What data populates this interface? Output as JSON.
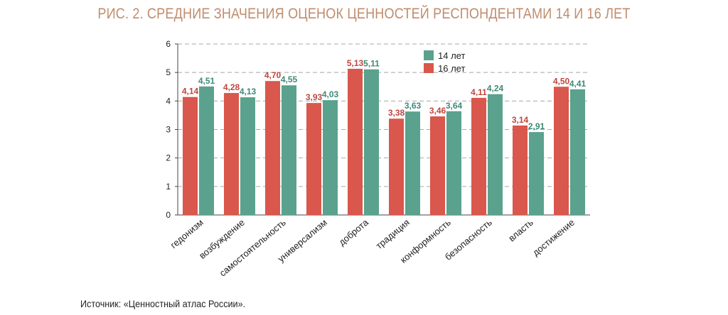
{
  "chart_data": {
    "type": "bar",
    "title": "РИС. 2. СРЕДНИЕ ЗНАЧЕНИЯ ОЦЕНОК ЦЕННОСТЕЙ РЕСПОНДЕНТАМИ 14 И 16 ЛЕТ",
    "categories": [
      "гедонизм",
      "возбуждение",
      "самостоятельность",
      "универсализм",
      "доброта",
      "традиция",
      "конформность",
      "безопасность",
      "власть",
      "достижение"
    ],
    "series": [
      {
        "name": "16 лет",
        "color": "#d9574c",
        "values": [
          4.14,
          4.28,
          4.7,
          3.93,
          5.13,
          3.38,
          3.46,
          4.11,
          3.14,
          4.5
        ],
        "labels": [
          "4,14",
          "4,28",
          "4,70",
          "3,93",
          "5,13",
          "3,38",
          "3,46",
          "4,11",
          "3,14",
          "4,50"
        ]
      },
      {
        "name": "14 лет",
        "color": "#5aa28d",
        "values": [
          4.51,
          4.13,
          4.55,
          4.03,
          5.11,
          3.63,
          3.64,
          4.24,
          2.91,
          4.41
        ],
        "labels": [
          "4,51",
          "4,13",
          "4,55",
          "4,03",
          "5,11",
          "3,63",
          "3,64",
          "4,24",
          "2,91",
          "4,41"
        ]
      }
    ],
    "ylim": [
      0,
      6
    ],
    "yticks": [
      "0",
      "1",
      "2",
      "3",
      "4",
      "5",
      "6"
    ],
    "grid": true,
    "legend": {
      "position": "top-right",
      "order": [
        "14 лет",
        "16 лет"
      ]
    },
    "value_label_colors": {
      "16 лет": "#c0463f",
      "14 лет": "#3e8a76"
    }
  },
  "source": "Источник: «Ценностный атлас России»."
}
